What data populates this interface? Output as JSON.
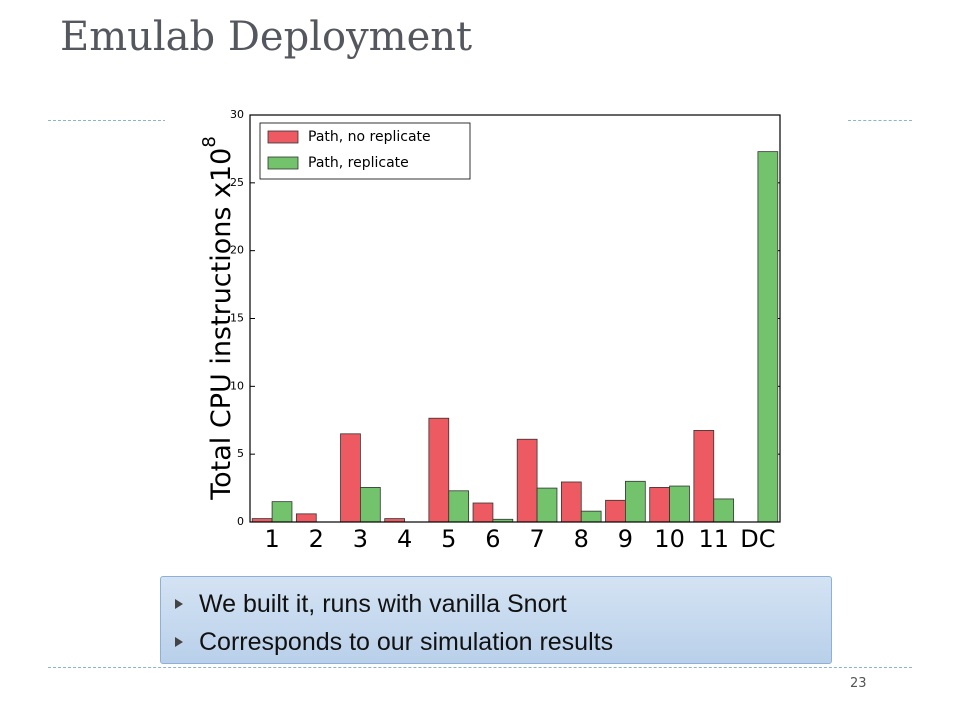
{
  "slide_title": "Emulab Deployment",
  "bullets": [
    "We built it, runs with vanilla Snort",
    "Corresponds to our simulation results"
  ],
  "page_number": "23",
  "chart_data": {
    "type": "bar",
    "ylabel": "Total CPU instructions x10",
    "ylabel_superscript": "8",
    "categories": [
      "1",
      "2",
      "3",
      "4",
      "5",
      "6",
      "7",
      "8",
      "9",
      "10",
      "11",
      "DC"
    ],
    "series": [
      {
        "name": "Path, no replicate",
        "color": "#ee5a62",
        "values": [
          0.25,
          0.6,
          6.5,
          0.25,
          7.65,
          1.4,
          6.1,
          2.95,
          1.6,
          2.55,
          6.75,
          0
        ]
      },
      {
        "name": "Path, replicate",
        "color": "#72c36c",
        "values": [
          1.5,
          0,
          2.55,
          0,
          2.3,
          0.2,
          2.5,
          0.8,
          3.0,
          2.65,
          1.7,
          27.3
        ]
      }
    ],
    "ylim": [
      0,
      30
    ],
    "yticks": [
      0,
      5,
      10,
      15,
      20,
      25,
      30
    ],
    "grid": false,
    "legend": "upper left"
  }
}
